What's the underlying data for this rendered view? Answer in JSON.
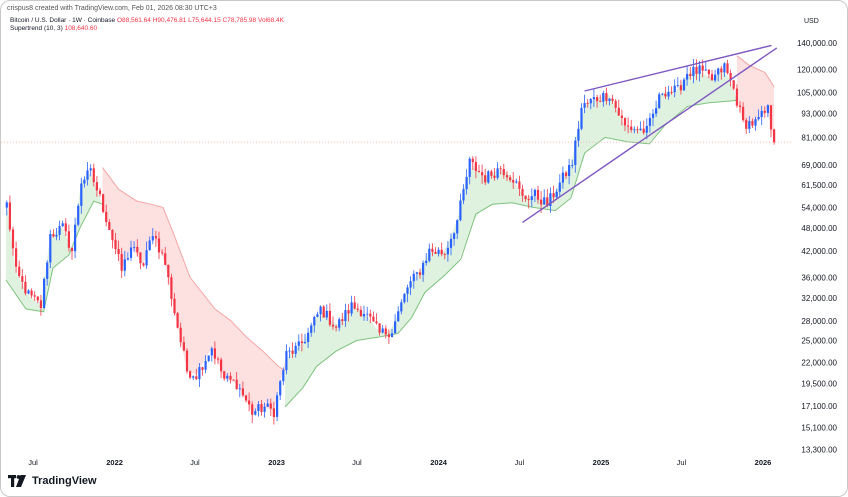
{
  "header": {
    "credit": "crispus8 created with TradingView.com, Feb 01, 2026 08:30 UTC+3",
    "symbol": "Bitcoin / U.S. Dollar · 1W · Coinbase",
    "ohlcv": {
      "open": "O88,561.64",
      "high": "H90,476.81",
      "low": "L75,644.15",
      "close": "C78,785.98",
      "volume": "Vol68.4K"
    },
    "indicator": {
      "name": "Supertrend (10, 3)",
      "value": "108,640.60"
    },
    "currency": "USD"
  },
  "footer": {
    "logo_text": "TradingView",
    "logo_icon": "tradingview-logo-icon"
  },
  "colors": {
    "up": "#2962ff",
    "down": "#f23645",
    "supertrend_up_fill": "#dff2df",
    "supertrend_up_line": "#7ec27e",
    "supertrend_down_fill": "#fde0e0",
    "supertrend_down_line": "#f5a6a6",
    "trendline": "#7e57c2",
    "price_line": "#f6b3b3"
  },
  "chart_data": {
    "type": "candlestick",
    "title": "Bitcoin / U.S. Dollar · 1W · Coinbase",
    "ylabel": "USD",
    "yscale": "log",
    "ylim": [
      12800,
      150000
    ],
    "xlim": [
      "2021-04-20",
      "2026-03-05"
    ],
    "grid": false,
    "yticks": [
      140000,
      120000,
      105000,
      93000,
      81000,
      69000,
      61500,
      54000,
      48000,
      42000,
      36000,
      32000,
      28000,
      25000,
      22000,
      19500,
      17100,
      15100,
      13300
    ],
    "ytick_labels": [
      "140,000.00",
      "120,000.00",
      "105,000.00",
      "93,000.00",
      "81,000.00",
      "69,000.00",
      "61,500.00",
      "54,000.00",
      "48,000.00",
      "42,000.00",
      "36,000.00",
      "32,000.00",
      "28,000.00",
      "25,000.00",
      "22,000.00",
      "19,500.00",
      "17,100.00",
      "15,100.00",
      "13,300.00"
    ],
    "xticks": [
      {
        "label": "Jul",
        "date": "2021-07-01",
        "bold": false
      },
      {
        "label": "2022",
        "date": "2022-01-01",
        "bold": true
      },
      {
        "label": "Jul",
        "date": "2022-07-01",
        "bold": false
      },
      {
        "label": "2023",
        "date": "2023-01-01",
        "bold": true
      },
      {
        "label": "Jul",
        "date": "2023-07-01",
        "bold": false
      },
      {
        "label": "2024",
        "date": "2024-01-01",
        "bold": true
      },
      {
        "label": "Jul",
        "date": "2024-07-01",
        "bold": false
      },
      {
        "label": "2025",
        "date": "2025-01-01",
        "bold": true
      },
      {
        "label": "Jul",
        "date": "2025-07-01",
        "bold": false
      },
      {
        "label": "2026",
        "date": "2026-01-01",
        "bold": true
      }
    ],
    "last_close": 78785.98,
    "price_path": [
      [
        "2021-05-03",
        55000
      ],
      [
        "2021-05-24",
        37000
      ],
      [
        "2021-06-21",
        32500
      ],
      [
        "2021-07-19",
        30500
      ],
      [
        "2021-08-09",
        46000
      ],
      [
        "2021-09-06",
        48000
      ],
      [
        "2021-09-27",
        42000
      ],
      [
        "2021-10-18",
        63000
      ],
      [
        "2021-11-08",
        66000
      ],
      [
        "2021-11-29",
        57000
      ],
      [
        "2021-12-20",
        48000
      ],
      [
        "2022-01-17",
        37500
      ],
      [
        "2022-02-07",
        43000
      ],
      [
        "2022-03-07",
        38500
      ],
      [
        "2022-03-28",
        47000
      ],
      [
        "2022-04-25",
        39000
      ],
      [
        "2022-05-16",
        29500
      ],
      [
        "2022-06-13",
        21000
      ],
      [
        "2022-07-04",
        20500
      ],
      [
        "2022-08-08",
        24000
      ],
      [
        "2022-09-05",
        20000
      ],
      [
        "2022-10-03",
        19500
      ],
      [
        "2022-11-07",
        16500
      ],
      [
        "2022-12-05",
        17000
      ],
      [
        "2022-12-26",
        16600
      ],
      [
        "2023-01-23",
        23000
      ],
      [
        "2023-02-20",
        24000
      ],
      [
        "2023-03-13",
        26000
      ],
      [
        "2023-04-10",
        30000
      ],
      [
        "2023-05-15",
        27000
      ],
      [
        "2023-06-19",
        30500
      ],
      [
        "2023-07-17",
        29500
      ],
      [
        "2023-08-21",
        26000
      ],
      [
        "2023-09-18",
        26500
      ],
      [
        "2023-10-23",
        34000
      ],
      [
        "2023-11-20",
        37500
      ],
      [
        "2023-12-11",
        42000
      ],
      [
        "2024-01-15",
        41500
      ],
      [
        "2024-02-12",
        50000
      ],
      [
        "2024-03-11",
        70000
      ],
      [
        "2024-04-15",
        64000
      ],
      [
        "2024-05-20",
        68000
      ],
      [
        "2024-06-17",
        64000
      ],
      [
        "2024-07-08",
        57000
      ],
      [
        "2024-08-05",
        58000
      ],
      [
        "2024-09-02",
        55000
      ],
      [
        "2024-09-30",
        62000
      ],
      [
        "2024-10-28",
        70000
      ],
      [
        "2024-11-18",
        96000
      ],
      [
        "2024-12-16",
        101000
      ],
      [
        "2025-01-20",
        104000
      ],
      [
        "2025-02-24",
        86000
      ],
      [
        "2025-03-24",
        85000
      ],
      [
        "2025-04-14",
        84000
      ],
      [
        "2025-05-19",
        106000
      ],
      [
        "2025-06-23",
        106000
      ],
      [
        "2025-07-14",
        118000
      ],
      [
        "2025-08-11",
        119000
      ],
      [
        "2025-09-08",
        113000
      ],
      [
        "2025-10-06",
        122000
      ],
      [
        "2025-10-27",
        107000
      ],
      [
        "2025-11-17",
        88000
      ],
      [
        "2025-12-15",
        88000
      ],
      [
        "2026-01-12",
        95000
      ],
      [
        "2026-01-26",
        79000
      ]
    ],
    "supertrend_segments": [
      {
        "trend": "up",
        "points": [
          [
            "2021-05-01",
            35500
          ],
          [
            "2021-06-15",
            30000
          ],
          [
            "2021-07-25",
            29500
          ],
          [
            "2021-08-15",
            38000
          ],
          [
            "2021-09-20",
            41000
          ],
          [
            "2021-10-15",
            48000
          ],
          [
            "2021-11-15",
            56000
          ],
          [
            "2021-12-05",
            55000
          ]
        ]
      },
      {
        "trend": "down",
        "points": [
          [
            "2021-12-05",
            68000
          ],
          [
            "2022-01-10",
            60000
          ],
          [
            "2022-02-20",
            56000
          ],
          [
            "2022-03-25",
            55000
          ],
          [
            "2022-04-20",
            54000
          ],
          [
            "2022-05-15",
            46000
          ],
          [
            "2022-06-20",
            36000
          ],
          [
            "2022-08-15",
            30000
          ],
          [
            "2022-09-20",
            28000
          ],
          [
            "2022-10-25",
            25500
          ],
          [
            "2022-12-01",
            23500
          ],
          [
            "2023-01-05",
            21500
          ],
          [
            "2023-01-20",
            21000
          ]
        ]
      },
      {
        "trend": "up",
        "points": [
          [
            "2023-01-20",
            17000
          ],
          [
            "2023-03-01",
            19000
          ],
          [
            "2023-04-01",
            21500
          ],
          [
            "2023-05-15",
            23500
          ],
          [
            "2023-07-01",
            25000
          ],
          [
            "2023-08-20",
            25500
          ],
          [
            "2023-10-01",
            26000
          ],
          [
            "2023-11-01",
            28500
          ],
          [
            "2023-12-01",
            33000
          ],
          [
            "2024-01-15",
            36500
          ],
          [
            "2024-02-20",
            40000
          ],
          [
            "2024-03-25",
            52000
          ],
          [
            "2024-05-01",
            55000
          ],
          [
            "2024-06-15",
            55500
          ],
          [
            "2024-08-01",
            54000
          ],
          [
            "2024-09-20",
            53000
          ],
          [
            "2024-10-25",
            57000
          ],
          [
            "2024-11-25",
            74000
          ],
          [
            "2025-01-10",
            81000
          ],
          [
            "2025-03-01",
            79000
          ],
          [
            "2025-04-20",
            78000
          ],
          [
            "2025-05-25",
            87000
          ],
          [
            "2025-07-15",
            97000
          ],
          [
            "2025-09-01",
            99000
          ],
          [
            "2025-10-20",
            100000
          ],
          [
            "2025-11-03",
            100500
          ]
        ]
      },
      {
        "trend": "down",
        "points": [
          [
            "2025-11-03",
            130000
          ],
          [
            "2025-12-01",
            123000
          ],
          [
            "2026-01-05",
            118000
          ],
          [
            "2026-01-26",
            108640
          ]
        ]
      }
    ],
    "trendlines": [
      {
        "name": "upper",
        "points": [
          [
            "2024-11-25",
            106000
          ],
          [
            "2026-01-20",
            138000
          ]
        ]
      },
      {
        "name": "lower",
        "points": [
          [
            "2024-07-08",
            49500
          ],
          [
            "2026-02-01",
            136000
          ]
        ]
      }
    ]
  }
}
